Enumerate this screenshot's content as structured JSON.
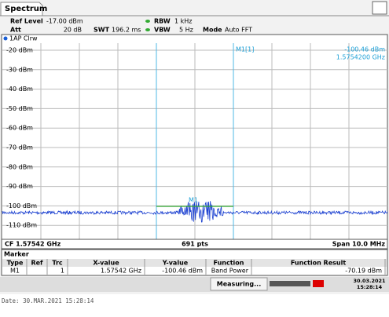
{
  "tab": "Spectrum",
  "settings": {
    "ref_level_label": "Ref Level",
    "ref_level": "-17.00 dBm",
    "att_label": "Att",
    "att": "20 dB",
    "swt_label": "SWT",
    "swt": "196.2 ms",
    "rbw_label": "RBW",
    "rbw": "1 kHz",
    "vbw_label": "VBW",
    "vbw": "5 Hz",
    "mode_label": "Mode",
    "mode": "Auto FFT"
  },
  "trace_label": "1AP Clrw",
  "y_ticks": [
    "-20 dBm",
    "-30 dBm",
    "-40 dBm",
    "-50 dBm",
    "-60 dBm",
    "-70 dBm",
    "-80 dBm",
    "-90 dBm",
    "-100 dBm",
    "-110 dBm"
  ],
  "marker_tag": "M1[1]",
  "marker_level": "-100.46 dBm",
  "marker_freq": "1.5754200 GHz",
  "marker_point_label": "M1",
  "footer": {
    "cf": "CF 1.57542 GHz",
    "points": "691 pts",
    "span": "Span 10.0 MHz"
  },
  "marker_table": {
    "title": "Marker",
    "headers": [
      "Type",
      "Ref",
      "Trc",
      "X-value",
      "Y-value",
      "Function",
      "Function Result"
    ],
    "rows": [
      {
        "type": "M1",
        "trc": "1",
        "x": "1.57542 GHz",
        "y": "-100.46 dBm",
        "function": "Band Power",
        "result": "-70.19 dBm"
      }
    ]
  },
  "status": {
    "measuring": "Measuring...",
    "date": "30.03.2021",
    "time": "15:28:14"
  },
  "date_line": "Date: 30.MAR.2021  15:28:14"
}
